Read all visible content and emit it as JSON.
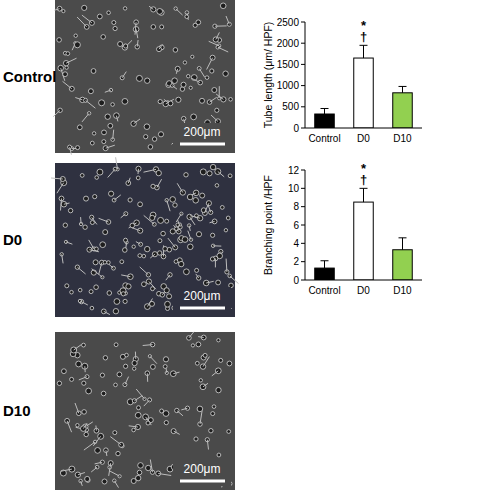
{
  "images": [
    {
      "label": "Control",
      "scale_bar": "200μm"
    },
    {
      "label": "D0",
      "scale_bar": "200μm"
    },
    {
      "label": "D10",
      "scale_bar": "200μm"
    }
  ],
  "chart_data": [
    {
      "type": "bar",
      "y_label": "Tube length (μm/ HPF)",
      "categories": [
        "Control",
        "D0",
        "D10"
      ],
      "values": [
        330,
        1650,
        830
      ],
      "errors": [
        130,
        300,
        150
      ],
      "colors": [
        "#000000",
        "#ffffff",
        "#92d050"
      ],
      "ylim": [
        0,
        2500
      ],
      "yticks": [
        0,
        500,
        1000,
        1500,
        2000,
        2500
      ],
      "annotations": [
        {
          "text": "*",
          "category": "D0"
        },
        {
          "text": "†",
          "category": "D0"
        }
      ]
    },
    {
      "type": "bar",
      "y_label": "Branching point /HPF",
      "categories": [
        "Control",
        "D0",
        "D10"
      ],
      "values": [
        1.3,
        8.5,
        3.3
      ],
      "errors": [
        0.8,
        1.5,
        1.3
      ],
      "colors": [
        "#000000",
        "#ffffff",
        "#92d050"
      ],
      "ylim": [
        0,
        12
      ],
      "yticks": [
        0,
        2,
        4,
        6,
        8,
        10,
        12
      ],
      "annotations": [
        {
          "text": "*",
          "category": "D0"
        },
        {
          "text": "†",
          "category": "D0"
        }
      ]
    }
  ]
}
